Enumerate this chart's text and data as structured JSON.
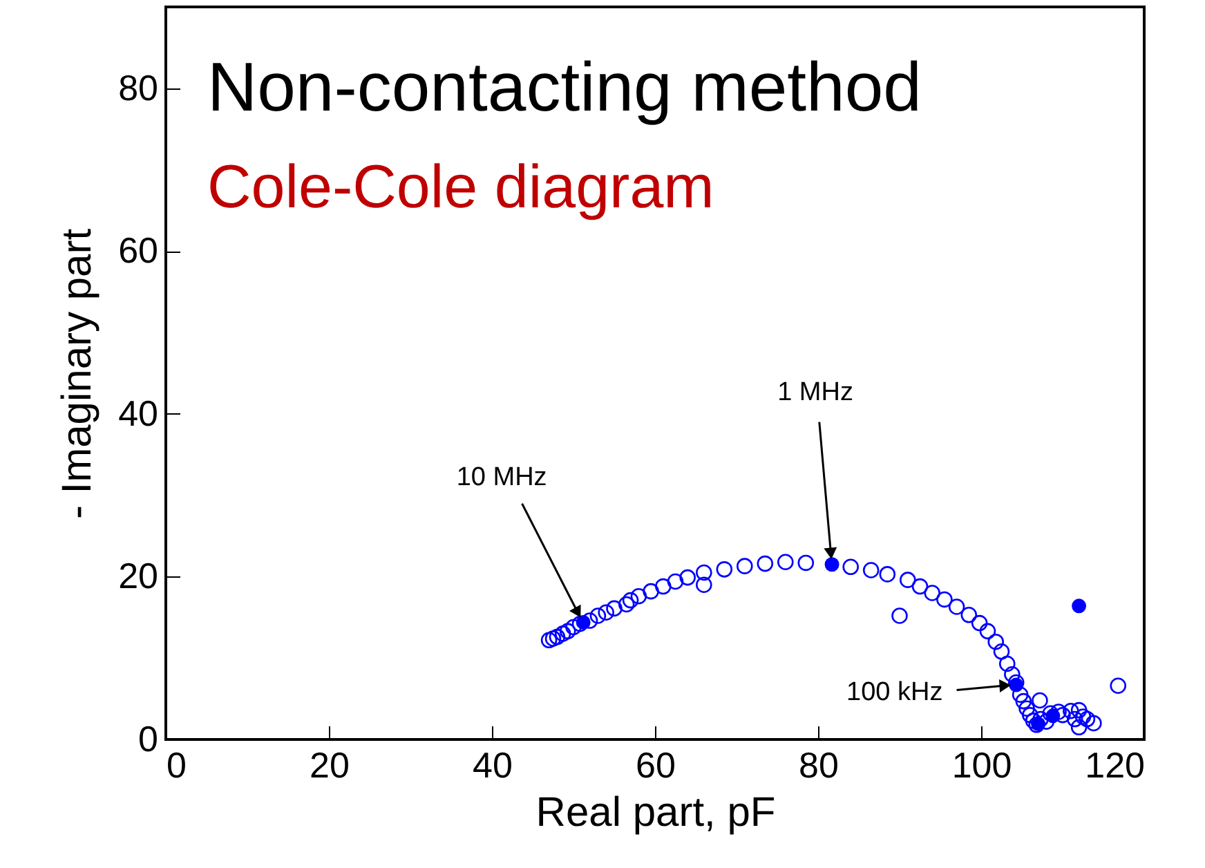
{
  "chart_data": {
    "type": "scatter",
    "title": "Non-contacting method",
    "subtitle": "Cole-Cole diagram",
    "xlabel": "Real part, pF",
    "ylabel": "- Imaginary part",
    "xlim": [
      0,
      120
    ],
    "xticks": [
      0,
      20,
      40,
      60,
      80,
      100,
      120
    ],
    "ylim": [
      0,
      90
    ],
    "yticks": [
      0,
      20,
      40,
      60,
      80
    ],
    "grid": false,
    "marker": "circle",
    "annotations": [
      {
        "text": "10 MHz",
        "x": 51.2,
        "y": 14.4
      },
      {
        "text": "1 MHz",
        "x": 81.7,
        "y": 21.5
      },
      {
        "text": "100 kHz",
        "x": 104.3,
        "y": 6.7
      }
    ],
    "series": [
      {
        "color": "#0000ff",
        "x": [
          47,
          47.5,
          48,
          48.7,
          49.3,
          50,
          50.8,
          52,
          53,
          54,
          55,
          56.5,
          57,
          58,
          59.5,
          61,
          62.5,
          64,
          66,
          66,
          68.5,
          71,
          73.5,
          76,
          78.5,
          84,
          86.5,
          88.5,
          90,
          91,
          92.5,
          94,
          95.5,
          97,
          98.5,
          99.8,
          100.8,
          101.8,
          102.5,
          103.2,
          103.8,
          104.3,
          104.8,
          105.2,
          105.6,
          106,
          106.4,
          106.8,
          107.2,
          107.3,
          108,
          108.5,
          109.5,
          110,
          111,
          111.5,
          112,
          112,
          112.5,
          113,
          113.8,
          116.8
        ],
        "values": [
          12.2,
          12.4,
          12.6,
          13,
          13.3,
          13.8,
          14.2,
          14.6,
          15.2,
          15.6,
          16.1,
          16.6,
          17.1,
          17.6,
          18.2,
          18.8,
          19.4,
          19.9,
          20.5,
          19,
          20.9,
          21.3,
          21.6,
          21.8,
          21.7,
          21.2,
          20.8,
          20.3,
          15.2,
          19.6,
          18.8,
          18,
          17.2,
          16.3,
          15.3,
          14.3,
          13.3,
          12,
          10.8,
          9.3,
          8,
          7,
          5.5,
          4.7,
          3.8,
          3,
          2.3,
          1.8,
          4.8,
          2.5,
          2.2,
          3.2,
          3.4,
          3,
          3.5,
          2.5,
          1.5,
          3.6,
          2.8,
          2.5,
          2,
          6.6
        ]
      },
      {
        "color": "#0000ff",
        "x": [
          51.2,
          81.7,
          104.3,
          107,
          108.8,
          112
        ],
        "values": [
          14.4,
          21.5,
          6.7,
          1.9,
          2.9,
          16.4
        ]
      }
    ]
  }
}
